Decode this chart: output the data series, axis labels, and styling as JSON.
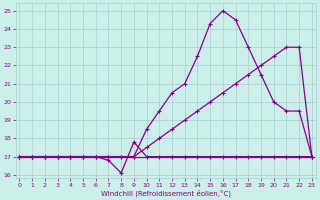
{
  "xlabel": "Windchill (Refroidissement éolien,°C)",
  "background_color": "#cceee8",
  "grid_color": "#aacccc",
  "line_color": "#880088",
  "ylim": [
    15.8,
    25.4
  ],
  "xlim": [
    -0.3,
    23.3
  ],
  "yticks": [
    16,
    17,
    18,
    19,
    20,
    21,
    22,
    23,
    24,
    25
  ],
  "xticks": [
    0,
    1,
    2,
    3,
    4,
    5,
    6,
    7,
    8,
    9,
    10,
    11,
    12,
    13,
    14,
    15,
    16,
    17,
    18,
    19,
    20,
    21,
    22,
    23
  ],
  "series_dip_x": [
    0,
    1,
    2,
    3,
    4,
    5,
    6,
    7,
    8,
    9,
    10,
    11,
    12,
    13,
    14,
    15,
    16,
    17,
    18,
    19,
    20,
    21,
    22,
    23
  ],
  "series_dip_y": [
    17,
    17,
    17,
    17,
    17,
    17,
    17,
    16.8,
    16.1,
    17.8,
    17,
    17,
    17,
    17,
    17,
    17,
    17,
    17,
    17,
    17,
    17,
    17,
    17,
    17
  ],
  "series_mid_x": [
    0,
    1,
    2,
    3,
    4,
    5,
    6,
    7,
    8,
    9,
    10,
    11,
    12,
    13,
    14,
    15,
    16,
    17,
    18,
    19,
    20,
    21,
    22,
    23
  ],
  "series_mid_y": [
    17,
    17,
    17,
    17,
    17,
    17,
    17,
    17,
    17,
    17,
    17.5,
    18.0,
    18.5,
    19.0,
    19.5,
    20.0,
    20.5,
    21.0,
    21.5,
    22.0,
    22.5,
    23.0,
    23.0,
    17
  ],
  "series_top_x": [
    0,
    1,
    2,
    3,
    4,
    5,
    6,
    7,
    8,
    9,
    10,
    11,
    12,
    13,
    14,
    15,
    16,
    17,
    18,
    19,
    20,
    21,
    22,
    23
  ],
  "series_top_y": [
    17,
    17,
    17,
    17,
    17,
    17,
    17,
    17,
    17,
    17,
    18.5,
    19.5,
    20.5,
    21.0,
    22.5,
    24.3,
    25.0,
    24.5,
    23.0,
    21.5,
    20.0,
    19.5,
    19.5,
    17
  ],
  "series_flat_x": [
    0,
    1,
    2,
    3,
    4,
    5,
    6,
    7,
    8,
    9,
    10,
    11,
    12,
    13,
    14,
    15,
    16,
    17,
    18,
    19,
    20,
    21,
    22,
    23
  ],
  "series_flat_y": [
    17,
    17,
    17,
    17,
    17,
    17,
    17,
    17,
    17,
    17,
    17,
    17,
    17,
    17,
    17,
    17,
    17,
    17,
    17,
    17,
    17,
    17,
    17,
    17
  ]
}
